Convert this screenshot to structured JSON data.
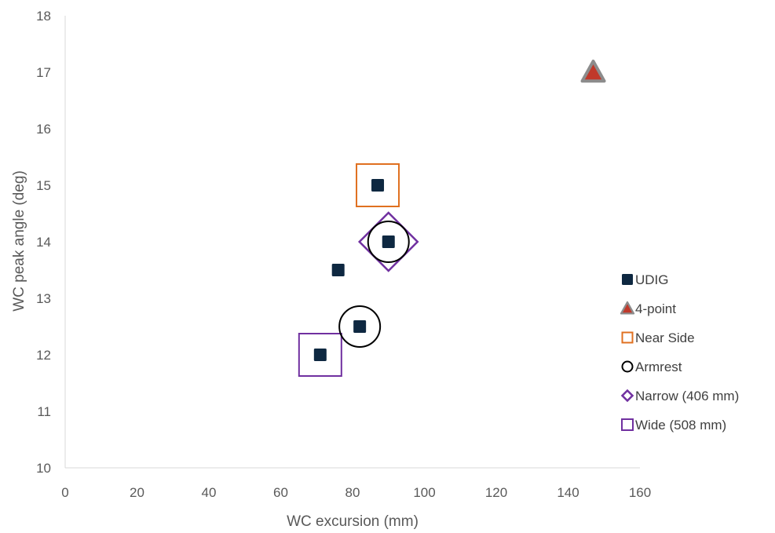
{
  "chart_data": {
    "type": "scatter",
    "xlabel": "WC excursion (mm)",
    "ylabel": "WC peak angle  (deg)",
    "xlim": [
      0,
      160
    ],
    "ylim": [
      10,
      18
    ],
    "x_ticks": [
      0,
      20,
      40,
      60,
      80,
      100,
      120,
      140,
      160
    ],
    "y_ticks": [
      10,
      11,
      12,
      13,
      14,
      15,
      16,
      17,
      18
    ],
    "grid": false,
    "legend_position": "right",
    "series": [
      {
        "name": "UDIG",
        "marker": "filled-square",
        "color": "#0E2841",
        "points": [
          {
            "x": 71,
            "y": 12
          },
          {
            "x": 76,
            "y": 13.5
          },
          {
            "x": 82,
            "y": 12.5
          },
          {
            "x": 87,
            "y": 15
          },
          {
            "x": 90,
            "y": 14
          }
        ]
      },
      {
        "name": "4-point",
        "marker": "filled-triangle",
        "color": "#C0392B",
        "outline": "#8C8C8C",
        "points": [
          {
            "x": 147,
            "y": 17
          }
        ]
      },
      {
        "name": "Near Side",
        "marker": "open-square",
        "color": "#E07020",
        "points": [
          {
            "x": 87,
            "y": 15
          }
        ]
      },
      {
        "name": "Armrest",
        "marker": "open-circle",
        "color": "#000000",
        "points": [
          {
            "x": 82,
            "y": 12.5
          },
          {
            "x": 90,
            "y": 14
          }
        ]
      },
      {
        "name": "Narrow (406 mm)",
        "marker": "open-diamond",
        "color": "#7030A0",
        "points": [
          {
            "x": 90,
            "y": 14
          }
        ]
      },
      {
        "name": "Wide (508 mm)",
        "marker": "open-square",
        "color": "#7030A0",
        "points": [
          {
            "x": 71,
            "y": 12
          }
        ]
      }
    ]
  }
}
